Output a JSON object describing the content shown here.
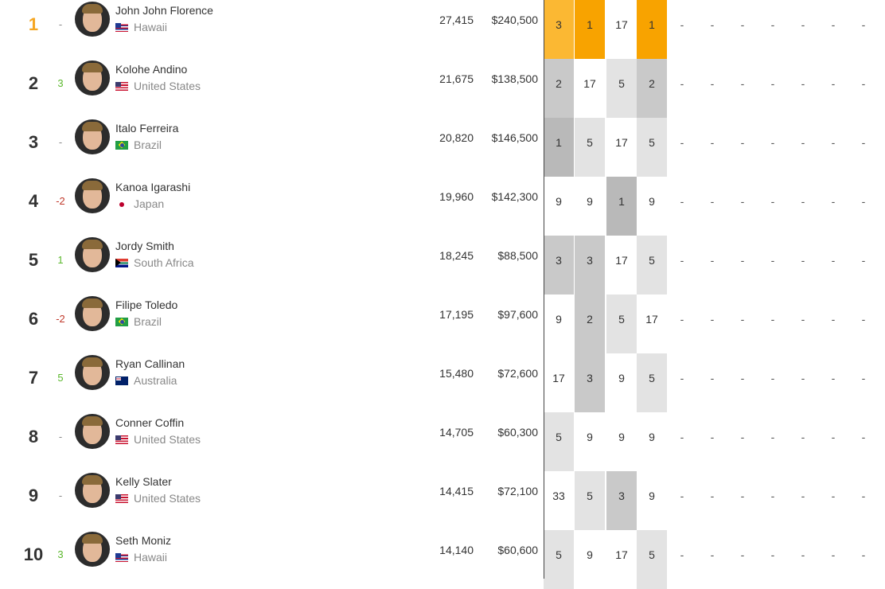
{
  "rows": [
    {
      "rank": "1",
      "change": "-",
      "dir": "none",
      "name": "John John Florence",
      "country": "Hawaii",
      "flag": "flag-hi",
      "points": "27,415",
      "prize": "$240,500",
      "results": [
        "3",
        "1",
        "17",
        "1"
      ],
      "shades": [
        "shade-gold1",
        "shade-gold2",
        "shade-none",
        "shade-gold2"
      ]
    },
    {
      "rank": "2",
      "change": "3",
      "dir": "up",
      "name": "Kolohe Andino",
      "country": "United States",
      "flag": "flag-us",
      "points": "21,675",
      "prize": "$138,500",
      "results": [
        "2",
        "17",
        "5",
        "2"
      ],
      "shades": [
        "shade-mid",
        "shade-none",
        "shade-light",
        "shade-mid"
      ]
    },
    {
      "rank": "3",
      "change": "-",
      "dir": "none",
      "name": "Italo Ferreira",
      "country": "Brazil",
      "flag": "flag-br",
      "points": "20,820",
      "prize": "$146,500",
      "results": [
        "1",
        "5",
        "17",
        "5"
      ],
      "shades": [
        "shade-dark",
        "shade-light",
        "shade-none",
        "shade-light"
      ]
    },
    {
      "rank": "4",
      "change": "-2",
      "dir": "down",
      "name": "Kanoa Igarashi",
      "country": "Japan",
      "flag": "flag-jp",
      "points": "19,960",
      "prize": "$142,300",
      "results": [
        "9",
        "9",
        "1",
        "9"
      ],
      "shades": [
        "shade-none",
        "shade-none",
        "shade-dark",
        "shade-none"
      ]
    },
    {
      "rank": "5",
      "change": "1",
      "dir": "up",
      "name": "Jordy Smith",
      "country": "South Africa",
      "flag": "flag-za",
      "points": "18,245",
      "prize": "$88,500",
      "results": [
        "3",
        "3",
        "17",
        "5"
      ],
      "shades": [
        "shade-mid",
        "shade-mid",
        "shade-none",
        "shade-light"
      ]
    },
    {
      "rank": "6",
      "change": "-2",
      "dir": "down",
      "name": "Filipe Toledo",
      "country": "Brazil",
      "flag": "flag-br",
      "points": "17,195",
      "prize": "$97,600",
      "results": [
        "9",
        "2",
        "5",
        "17"
      ],
      "shades": [
        "shade-none",
        "shade-mid",
        "shade-light",
        "shade-none"
      ]
    },
    {
      "rank": "7",
      "change": "5",
      "dir": "up",
      "name": "Ryan Callinan",
      "country": "Australia",
      "flag": "flag-au",
      "points": "15,480",
      "prize": "$72,600",
      "results": [
        "17",
        "3",
        "9",
        "5"
      ],
      "shades": [
        "shade-none",
        "shade-mid",
        "shade-none",
        "shade-light"
      ]
    },
    {
      "rank": "8",
      "change": "-",
      "dir": "none",
      "name": "Conner Coffin",
      "country": "United States",
      "flag": "flag-us",
      "points": "14,705",
      "prize": "$60,300",
      "results": [
        "5",
        "9",
        "9",
        "9"
      ],
      "shades": [
        "shade-light",
        "shade-none",
        "shade-none",
        "shade-none"
      ]
    },
    {
      "rank": "9",
      "change": "-",
      "dir": "none",
      "name": "Kelly Slater",
      "country": "United States",
      "flag": "flag-us",
      "points": "14,415",
      "prize": "$72,100",
      "results": [
        "33",
        "5",
        "3",
        "9"
      ],
      "shades": [
        "shade-none",
        "shade-light",
        "shade-mid",
        "shade-none"
      ]
    },
    {
      "rank": "10",
      "change": "3",
      "dir": "up",
      "name": "Seth Moniz",
      "country": "Hawaii",
      "flag": "flag-hi",
      "points": "14,140",
      "prize": "$60,600",
      "results": [
        "5",
        "9",
        "17",
        "5"
      ],
      "shades": [
        "shade-light",
        "shade-none",
        "shade-none",
        "shade-light"
      ]
    }
  ],
  "future_events": [
    "-",
    "-",
    "-",
    "-",
    "-",
    "-",
    "-"
  ],
  "colors": {
    "gold": "#f8a300",
    "gold_light": "#fbb833",
    "up": "#5cb82e",
    "down": "#c0392b"
  }
}
